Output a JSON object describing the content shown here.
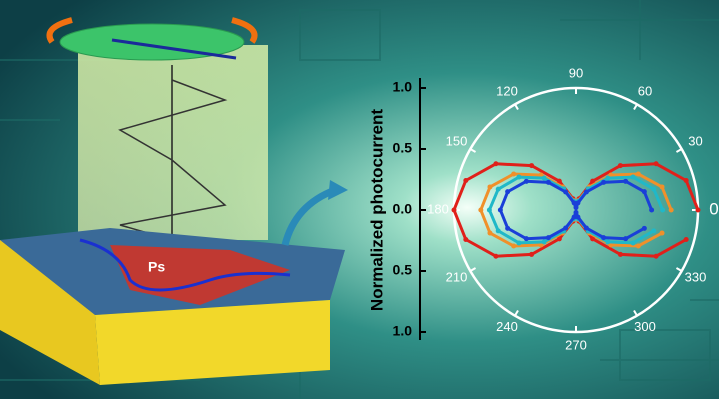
{
  "chart_data": {
    "type": "polar",
    "y_label": "Normalized photocurrent",
    "annotations": [
      "Ps"
    ],
    "rlim": [
      0,
      1.0
    ],
    "rticks": [
      {
        "value": 0,
        "label": "0.0"
      },
      {
        "value": 0.5,
        "label": "0.5"
      },
      {
        "value": 1,
        "label": "1.0"
      }
    ],
    "angle_ticks": [
      0,
      30,
      60,
      90,
      120,
      150,
      180,
      210,
      240,
      270,
      300,
      330
    ],
    "theta": [
      0,
      15,
      30,
      45,
      60,
      75,
      90,
      105,
      120,
      135,
      150,
      165,
      180,
      195,
      210,
      225,
      240,
      255,
      270,
      285,
      300,
      315,
      330,
      345
    ],
    "series": [
      {
        "color": "#e0201a",
        "values": [
          1.0,
          0.935,
          0.758,
          0.515,
          0.273,
          0.095,
          0.03,
          0.095,
          0.273,
          0.515,
          0.758,
          0.935,
          1.0,
          0.935,
          0.758,
          0.515,
          0.273,
          0.095,
          0.03,
          0.095,
          0.273,
          0.515,
          0.758,
          0.935
        ]
      },
      {
        "color": "#f0902a",
        "values": [
          0.78,
          0.73,
          0.59,
          0.405,
          0.218,
          0.08,
          0.03,
          0.08,
          0.218,
          0.405,
          0.59,
          0.73,
          0.78,
          0.73,
          0.59,
          0.405,
          0.218,
          0.08,
          0.03,
          0.08,
          0.218,
          0.405,
          0.59,
          0.73
        ]
      },
      {
        "color": "#20b8c8",
        "values": [
          0.71,
          0.66,
          0.54,
          0.37,
          0.2,
          0.075,
          0.03,
          0.075,
          0.2,
          0.37,
          0.54,
          0.66,
          0.71,
          0.66,
          0.54,
          0.37,
          0.2,
          0.075,
          0.03,
          0.075,
          0.2,
          0.37,
          0.54,
          0.66
        ]
      },
      {
        "color": "#1a3fd8",
        "values": [
          0.62,
          0.58,
          0.47,
          0.32,
          0.17,
          0.06,
          0.02,
          0.06,
          0.17,
          0.32,
          0.47,
          0.58,
          0.62,
          0.58,
          0.47,
          0.32,
          0.17,
          0.06,
          0.02,
          0.06,
          0.17,
          0.32,
          0.47,
          0.58
        ]
      }
    ]
  }
}
